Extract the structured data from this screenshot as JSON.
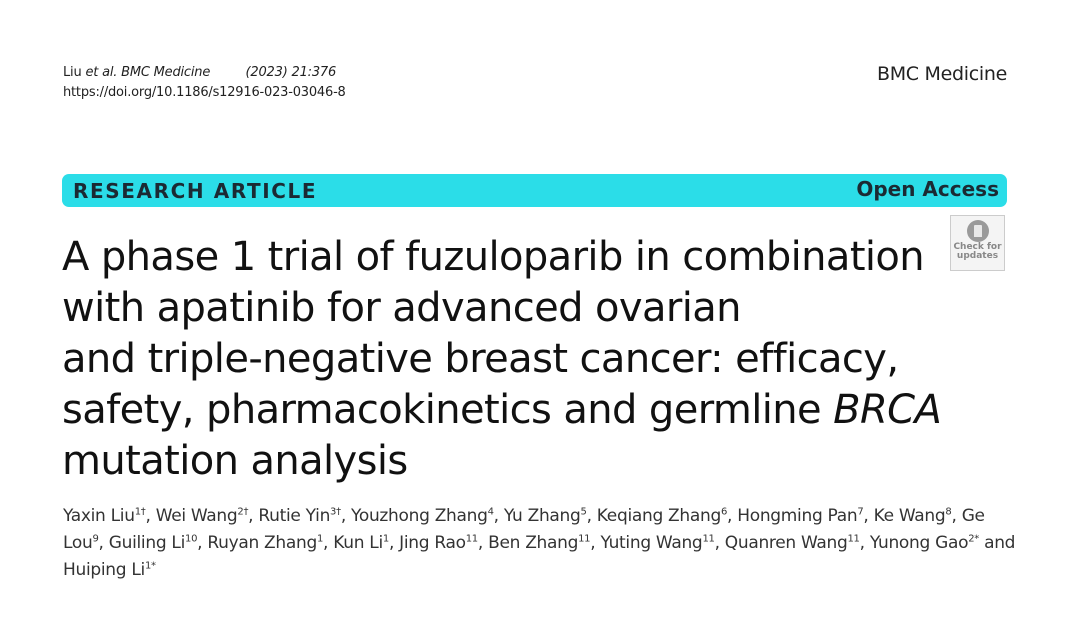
{
  "header": {
    "citation_authors": "Liu",
    "citation_etal": "et al. BMC Medicine",
    "citation_year_volume": "(2023) 21:376",
    "doi": "https://doi.org/10.1186/s12916-023-03046-8",
    "journal": "BMC Medicine"
  },
  "banner": {
    "type": "RESEARCH ARTICLE",
    "access": "Open Access",
    "color": "#2bdde8"
  },
  "check_for_updates": {
    "line1": "Check for",
    "line2": "updates",
    "icon": "bookmark-circle-icon"
  },
  "title": {
    "line1": "A phase 1 trial of fuzuloparib in combination",
    "line2": "with apatinib for advanced ovarian",
    "line3": "and triple-negative breast cancer: efficacy,",
    "line4": "safety, pharmacokinetics and germline ",
    "line4_italic": "BRCA",
    "line5": "mutation analysis"
  },
  "authors": [
    {
      "name": "Yaxin Liu",
      "sup": "1†",
      "sep": ", "
    },
    {
      "name": "Wei Wang",
      "sup": "2†",
      "sep": ", "
    },
    {
      "name": "Rutie Yin",
      "sup": "3†",
      "sep": ", "
    },
    {
      "name": "Youzhong Zhang",
      "sup": "4",
      "sep": ", "
    },
    {
      "name": "Yu Zhang",
      "sup": "5",
      "sep": ", "
    },
    {
      "name": "Keqiang Zhang",
      "sup": "6",
      "sep": ", "
    },
    {
      "name": "Hongming Pan",
      "sup": "7",
      "sep": ", "
    },
    {
      "name": "Ke Wang",
      "sup": "8",
      "sep": ", "
    },
    {
      "name": "Ge Lou",
      "sup": "9",
      "sep": ", "
    },
    {
      "name": "Guiling Li",
      "sup": "10",
      "sep": ", "
    },
    {
      "name": "Ruyan Zhang",
      "sup": "1",
      "sep": ", "
    },
    {
      "name": "Kun Li",
      "sup": "1",
      "sep": ", "
    },
    {
      "name": "Jing Rao",
      "sup": "11",
      "sep": ", "
    },
    {
      "name": "Ben Zhang",
      "sup": "11",
      "sep": ", "
    },
    {
      "name": "Yuting Wang",
      "sup": "11",
      "sep": ", "
    },
    {
      "name": "Quanren Wang",
      "sup": "11",
      "sep": ", "
    },
    {
      "name": "Yunong Gao",
      "sup": "2*",
      "sep": " and "
    },
    {
      "name": "Huiping Li",
      "sup": "1*",
      "sep": ""
    }
  ]
}
